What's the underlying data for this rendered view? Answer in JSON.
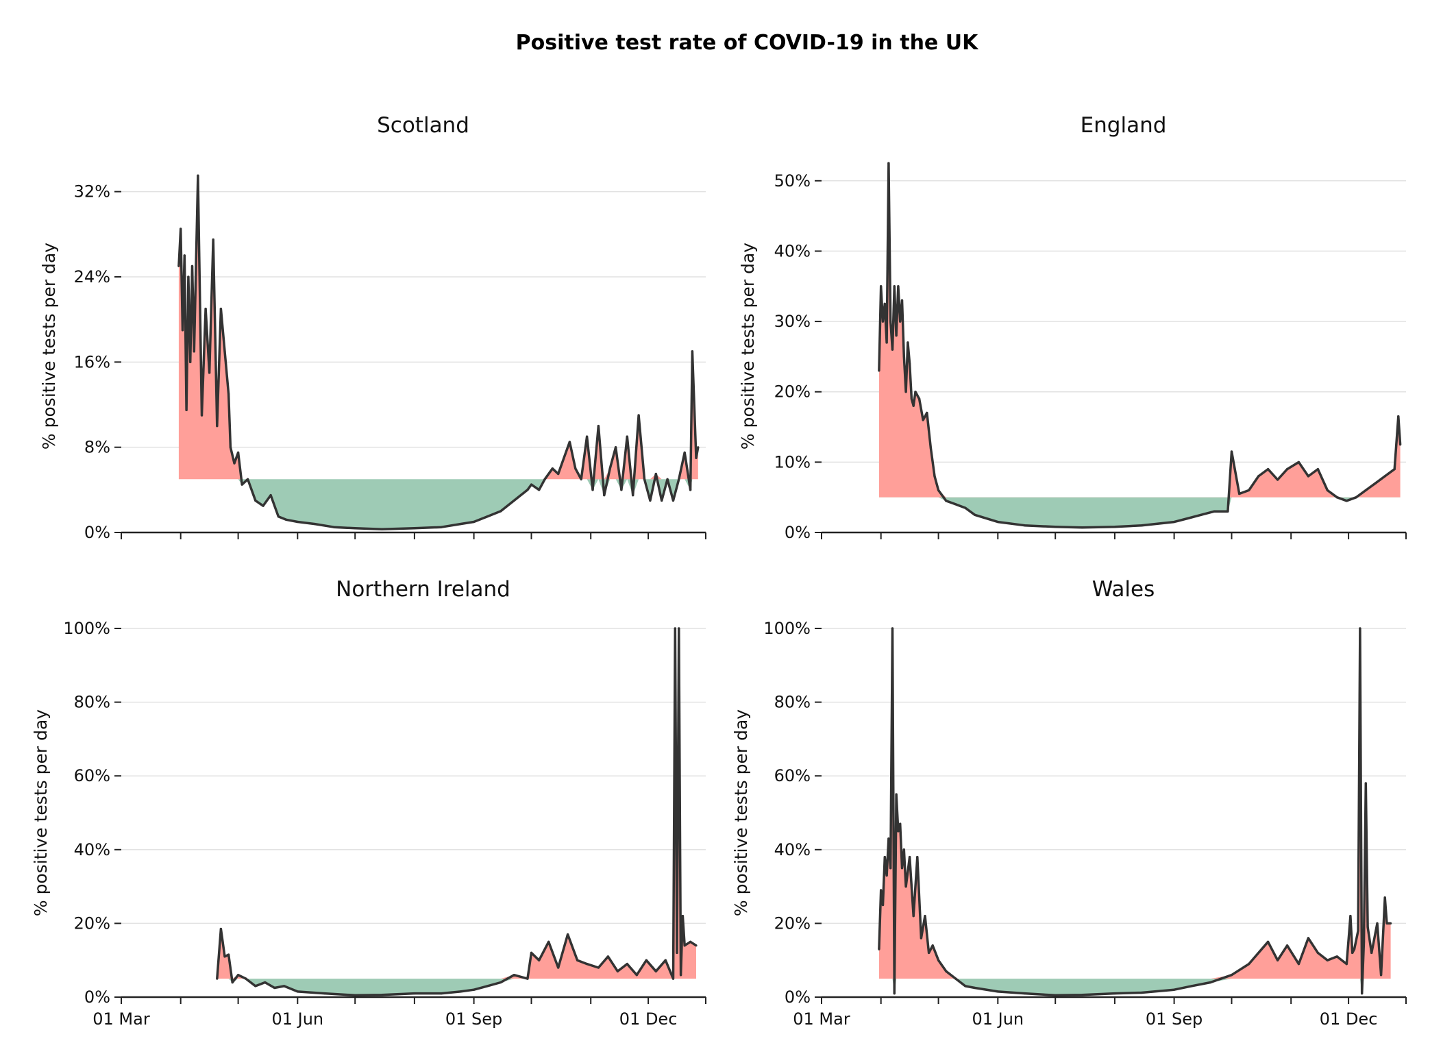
{
  "title": "Positive test rate of COVID-19 in the UK",
  "colors": {
    "above": "#ff9f99",
    "below": "#9ecbb5",
    "line": "#333333",
    "grid": "#e2e2e2"
  },
  "chart_data": [
    {
      "type": "line",
      "title": "Scotland",
      "ylabel": "% positive tests per day",
      "x_range": [
        "2020-03-01",
        "2020-12-31"
      ],
      "ylim": [
        0,
        35
      ],
      "y_ticks": [
        0,
        8,
        16,
        24,
        32
      ],
      "y_tick_labels": [
        "0%",
        "8%",
        "16%",
        "24%",
        "32%"
      ],
      "x_tick_labels": [],
      "threshold": 5,
      "x": [
        "2020-03-31",
        "2020-04-01",
        "2020-04-02",
        "2020-04-03",
        "2020-04-04",
        "2020-04-05",
        "2020-04-06",
        "2020-04-07",
        "2020-04-08",
        "2020-04-10",
        "2020-04-12",
        "2020-04-14",
        "2020-04-16",
        "2020-04-18",
        "2020-04-20",
        "2020-04-22",
        "2020-04-24",
        "2020-04-26",
        "2020-04-27",
        "2020-04-29",
        "2020-05-01",
        "2020-05-03",
        "2020-05-06",
        "2020-05-10",
        "2020-05-14",
        "2020-05-18",
        "2020-05-22",
        "2020-05-26",
        "2020-06-01",
        "2020-06-10",
        "2020-06-20",
        "2020-07-01",
        "2020-07-15",
        "2020-08-01",
        "2020-08-15",
        "2020-08-25",
        "2020-09-01",
        "2020-09-08",
        "2020-09-15",
        "2020-09-22",
        "2020-09-29",
        "2020-10-01",
        "2020-10-05",
        "2020-10-08",
        "2020-10-12",
        "2020-10-15",
        "2020-10-18",
        "2020-10-21",
        "2020-10-24",
        "2020-10-27",
        "2020-10-30",
        "2020-11-02",
        "2020-11-05",
        "2020-11-08",
        "2020-11-11",
        "2020-11-14",
        "2020-11-17",
        "2020-11-20",
        "2020-11-23",
        "2020-11-26",
        "2020-11-29",
        "2020-12-02",
        "2020-12-05",
        "2020-12-08",
        "2020-12-11",
        "2020-12-14",
        "2020-12-17",
        "2020-12-20",
        "2020-12-23",
        "2020-12-24",
        "2020-12-26",
        "2020-12-27"
      ],
      "y": [
        25,
        28.5,
        19,
        26,
        11.5,
        24,
        16,
        25,
        17,
        33.5,
        11,
        21,
        15,
        27.5,
        10,
        21,
        17,
        13,
        8,
        6.5,
        7.5,
        4.5,
        5,
        3,
        2.5,
        3.5,
        1.5,
        1.2,
        1,
        0.8,
        0.5,
        0.4,
        0.3,
        0.4,
        0.5,
        0.8,
        1,
        1.5,
        2,
        3,
        4,
        4.5,
        4,
        5,
        6,
        5.5,
        7,
        8.5,
        6,
        5,
        9,
        4,
        10,
        3.5,
        6,
        8,
        4,
        9,
        3.5,
        11,
        5,
        3,
        5.5,
        3,
        5,
        3,
        5,
        7.5,
        4,
        17,
        7,
        8
      ]
    },
    {
      "type": "line",
      "title": "England",
      "ylabel": "% positive tests per day",
      "x_range": [
        "2020-03-01",
        "2020-12-31"
      ],
      "ylim": [
        0,
        53
      ],
      "y_ticks": [
        0,
        10,
        20,
        30,
        40,
        50
      ],
      "y_tick_labels": [
        "0%",
        "10%",
        "20%",
        "30%",
        "40%",
        "50%"
      ],
      "x_tick_labels": [],
      "threshold": 5,
      "x": [
        "2020-03-31",
        "2020-04-01",
        "2020-04-02",
        "2020-04-03",
        "2020-04-04",
        "2020-04-05",
        "2020-04-06",
        "2020-04-07",
        "2020-04-08",
        "2020-04-09",
        "2020-04-10",
        "2020-04-11",
        "2020-04-12",
        "2020-04-13",
        "2020-04-14",
        "2020-04-15",
        "2020-04-16",
        "2020-04-17",
        "2020-04-18",
        "2020-04-19",
        "2020-04-21",
        "2020-04-23",
        "2020-04-25",
        "2020-04-27",
        "2020-04-29",
        "2020-05-01",
        "2020-05-05",
        "2020-05-10",
        "2020-05-15",
        "2020-05-20",
        "2020-06-01",
        "2020-06-15",
        "2020-07-01",
        "2020-07-15",
        "2020-08-01",
        "2020-08-15",
        "2020-09-01",
        "2020-09-08",
        "2020-09-15",
        "2020-09-22",
        "2020-09-29",
        "2020-10-01",
        "2020-10-05",
        "2020-10-10",
        "2020-10-15",
        "2020-10-20",
        "2020-10-25",
        "2020-10-30",
        "2020-11-05",
        "2020-11-10",
        "2020-11-15",
        "2020-11-20",
        "2020-11-25",
        "2020-11-30",
        "2020-12-05",
        "2020-12-10",
        "2020-12-15",
        "2020-12-20",
        "2020-12-25",
        "2020-12-27",
        "2020-12-28"
      ],
      "y": [
        23,
        35,
        30,
        32.5,
        27,
        52.5,
        30,
        26,
        35,
        28,
        35,
        30,
        33,
        25,
        20,
        27,
        24,
        19,
        18,
        20,
        19,
        16,
        17,
        12,
        8,
        6,
        4.5,
        4,
        3.5,
        2.5,
        1.5,
        1,
        0.8,
        0.7,
        0.8,
        1,
        1.5,
        2,
        2.5,
        3,
        3,
        11.5,
        5.5,
        6,
        8,
        9,
        7.5,
        9,
        10,
        8,
        9,
        6,
        5,
        4.5,
        5,
        6,
        7,
        8,
        9,
        16.5,
        12.5
      ]
    },
    {
      "type": "line",
      "title": "Northern Ireland",
      "ylabel": "% positive tests per day",
      "x_range": [
        "2020-03-01",
        "2020-12-31"
      ],
      "ylim": [
        0,
        100
      ],
      "y_ticks": [
        0,
        20,
        40,
        60,
        80,
        100
      ],
      "y_tick_labels": [
        "0%",
        "20%",
        "40%",
        "60%",
        "80%",
        "100%"
      ],
      "x_tick_labels": [
        "01 Mar",
        "01 Jun",
        "01 Sep",
        "01 Dec"
      ],
      "threshold": 5,
      "x": [
        "2020-04-20",
        "2020-04-22",
        "2020-04-24",
        "2020-04-26",
        "2020-04-28",
        "2020-05-01",
        "2020-05-05",
        "2020-05-10",
        "2020-05-15",
        "2020-05-20",
        "2020-05-25",
        "2020-06-01",
        "2020-06-15",
        "2020-07-01",
        "2020-07-15",
        "2020-08-01",
        "2020-08-15",
        "2020-08-25",
        "2020-09-01",
        "2020-09-08",
        "2020-09-15",
        "2020-09-22",
        "2020-09-29",
        "2020-10-01",
        "2020-10-05",
        "2020-10-10",
        "2020-10-15",
        "2020-10-20",
        "2020-10-25",
        "2020-10-30",
        "2020-11-05",
        "2020-11-10",
        "2020-11-15",
        "2020-11-20",
        "2020-11-25",
        "2020-11-30",
        "2020-12-05",
        "2020-12-10",
        "2020-12-14",
        "2020-12-15",
        "2020-12-16",
        "2020-12-17",
        "2020-12-18",
        "2020-12-19",
        "2020-12-20",
        "2020-12-23",
        "2020-12-26"
      ],
      "y": [
        5,
        18.5,
        11,
        11.5,
        4,
        6,
        5,
        3,
        4,
        2.5,
        3,
        1.5,
        1,
        0.5,
        0.6,
        1,
        1,
        1.5,
        2,
        3,
        4,
        6,
        5,
        12,
        10,
        15,
        8,
        17,
        10,
        9,
        8,
        11,
        7,
        9,
        6,
        10,
        7,
        10,
        5,
        100,
        12,
        100,
        6,
        22,
        14,
        15,
        14
      ]
    },
    {
      "type": "line",
      "title": "Wales",
      "ylabel": "% positive tests per day",
      "x_range": [
        "2020-03-01",
        "2020-12-31"
      ],
      "ylim": [
        0,
        100
      ],
      "y_ticks": [
        0,
        20,
        40,
        60,
        80,
        100
      ],
      "y_tick_labels": [
        "0%",
        "20%",
        "40%",
        "60%",
        "80%",
        "100%"
      ],
      "x_tick_labels": [
        "01 Mar",
        "01 Jun",
        "01 Sep",
        "01 Dec"
      ],
      "threshold": 5,
      "x": [
        "2020-03-31",
        "2020-04-01",
        "2020-04-02",
        "2020-04-03",
        "2020-04-04",
        "2020-04-05",
        "2020-04-06",
        "2020-04-07",
        "2020-04-08",
        "2020-04-09",
        "2020-04-10",
        "2020-04-11",
        "2020-04-12",
        "2020-04-13",
        "2020-04-14",
        "2020-04-16",
        "2020-04-18",
        "2020-04-20",
        "2020-04-22",
        "2020-04-24",
        "2020-04-26",
        "2020-04-28",
        "2020-05-01",
        "2020-05-05",
        "2020-05-10",
        "2020-05-15",
        "2020-05-20",
        "2020-06-01",
        "2020-06-15",
        "2020-07-01",
        "2020-07-15",
        "2020-08-01",
        "2020-08-15",
        "2020-09-01",
        "2020-09-10",
        "2020-09-20",
        "2020-10-01",
        "2020-10-10",
        "2020-10-20",
        "2020-10-25",
        "2020-10-30",
        "2020-11-05",
        "2020-11-10",
        "2020-11-15",
        "2020-11-20",
        "2020-11-25",
        "2020-11-30",
        "2020-12-02",
        "2020-12-03",
        "2020-12-04",
        "2020-12-06",
        "2020-12-07",
        "2020-12-08",
        "2020-12-09",
        "2020-12-10",
        "2020-12-11",
        "2020-12-13",
        "2020-12-16",
        "2020-12-18",
        "2020-12-20",
        "2020-12-21",
        "2020-12-23"
      ],
      "y": [
        13,
        29,
        25,
        38,
        33,
        43,
        35,
        100,
        1,
        55,
        45,
        47,
        35,
        40,
        30,
        38,
        22,
        38,
        16,
        22,
        12,
        14,
        10,
        7,
        5,
        3,
        2.5,
        1.5,
        1,
        0.5,
        0.6,
        1,
        1.2,
        2,
        3,
        4,
        6,
        9,
        15,
        10,
        14,
        9,
        16,
        12,
        10,
        11,
        9,
        22,
        12,
        13,
        18,
        100,
        1,
        15,
        58,
        19,
        12,
        20,
        6,
        27,
        20,
        20
      ]
    }
  ]
}
